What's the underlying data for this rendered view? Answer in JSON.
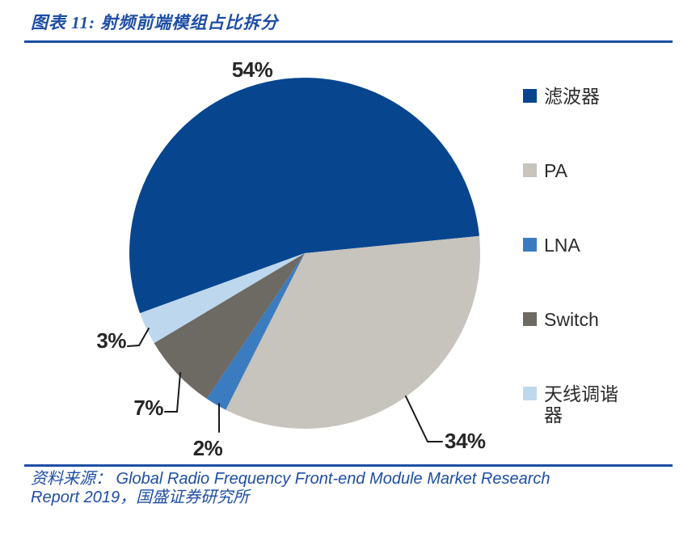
{
  "header": {
    "title": "图表 11: 射频前端模组占比拆分"
  },
  "chart_data": {
    "type": "pie",
    "title": "图表 11: 射频前端模组占比拆分",
    "slices": [
      {
        "label": "滤波器",
        "value": 54,
        "pct_label": "54%",
        "color": "#07468F"
      },
      {
        "label": "PA",
        "value": 34,
        "pct_label": "34%",
        "color": "#C7C3BD"
      },
      {
        "label": "LNA",
        "value": 2,
        "pct_label": "2%",
        "color": "#3B7CC0"
      },
      {
        "label": "Switch",
        "value": 7,
        "pct_label": "7%",
        "color": "#6D6963"
      },
      {
        "label": "天线调谐器",
        "value": 3,
        "pct_label": "3%",
        "color": "#BDD7EE"
      }
    ],
    "start_angle_deg": 250,
    "direction": "clockwise",
    "legend_position": "right",
    "accent_colors": {
      "rule": "#1D4FA3",
      "caption_text": "#1E4EA5",
      "percent_label_text": "#262626",
      "leader_line": "#1a1a1a"
    }
  },
  "footer": {
    "line1": "资料来源： Global Radio Frequency Front-end Module Market Research",
    "line2": "Report 2019，国盛证券研究所"
  }
}
